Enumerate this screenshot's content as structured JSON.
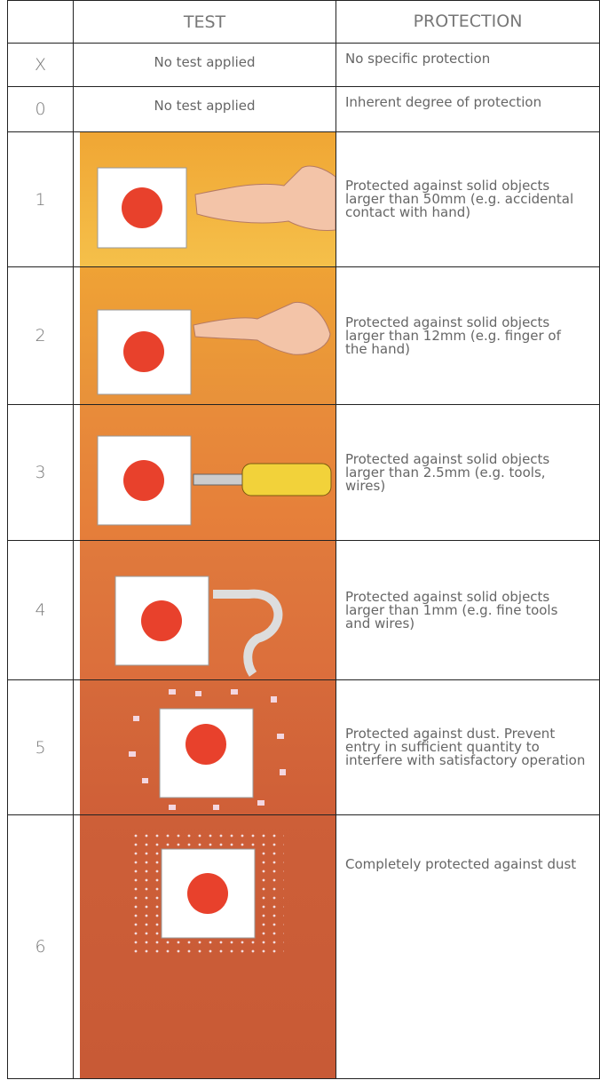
{
  "header": {
    "test": "TEST",
    "protection": "PROTECTION"
  },
  "rows": [
    {
      "code": "X",
      "test": "No test applied",
      "protection": "No specific protection"
    },
    {
      "code": "0",
      "test": "No test applied",
      "protection": "Inherent degree of protection"
    },
    {
      "code": "1",
      "protection": "Protected against solid objects larger than 50mm (e.g. accidental contact with hand)"
    },
    {
      "code": "2",
      "protection": "Protected against solid objects larger than 12mm (e.g. finger of the hand)"
    },
    {
      "code": "3",
      "protection": "Protected against solid objects larger than 2.5mm (e.g. tools, wires)"
    },
    {
      "code": "4",
      "protection": "Protected against solid objects larger than 1mm (e.g. fine tools and wires)"
    },
    {
      "code": "5",
      "protection": "Protected against dust. Prevent entry in sufficient quantity to interfere with satisfactory operation"
    },
    {
      "code": "6",
      "protection": "Completely protected against dust"
    }
  ]
}
